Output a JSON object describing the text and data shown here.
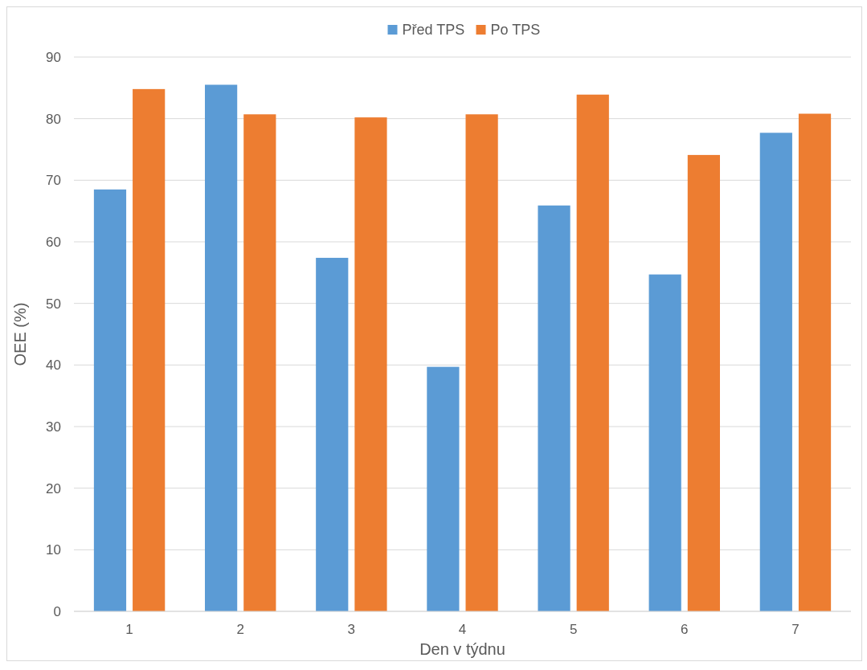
{
  "chart_data": {
    "type": "bar",
    "xlabel": "Den v týdnu",
    "ylabel": "OEE (%)",
    "categories": [
      "1",
      "2",
      "3",
      "4",
      "5",
      "6",
      "7"
    ],
    "series": [
      {
        "name": "Před TPS",
        "color": "#5b9bd5",
        "values": [
          68.5,
          85.5,
          57.4,
          39.7,
          65.9,
          54.7,
          77.7
        ]
      },
      {
        "name": "Po TPS",
        "color": "#ed7d31",
        "values": [
          84.8,
          80.7,
          80.2,
          80.7,
          83.9,
          74.1,
          80.8
        ]
      }
    ],
    "ylim": [
      0,
      90
    ],
    "yticks": [
      0,
      10,
      20,
      30,
      40,
      50,
      60,
      70,
      80,
      90
    ],
    "grid": "y",
    "legend": "top"
  }
}
